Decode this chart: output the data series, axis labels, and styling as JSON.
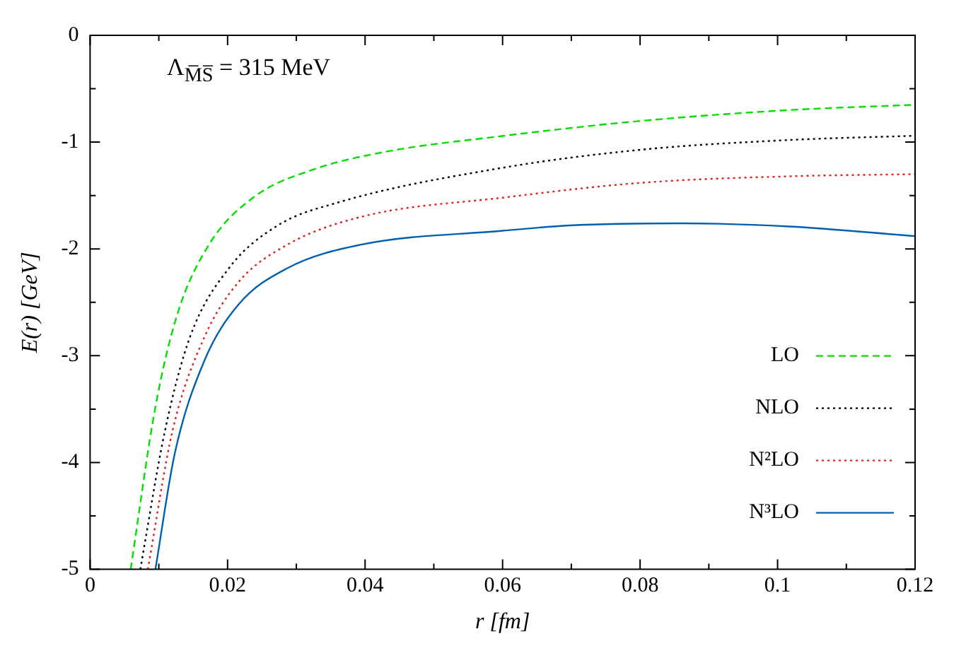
{
  "chart_data": {
    "type": "line",
    "xlabel": "r [fm]",
    "ylabel": "E(r) [GeV]",
    "annotations": [
      "Λ$_{M̅S̅}$ = 315 MeV"
    ],
    "xlim": [
      0,
      0.12
    ],
    "ylim": [
      -5,
      0
    ],
    "xticks": [
      0,
      {
        "value": 0.01,
        "label": null
      },
      0.02,
      {
        "value": 0.03,
        "label": null
      },
      0.04,
      {
        "value": 0.05,
        "label": null
      },
      0.06,
      {
        "value": 0.07,
        "label": null
      },
      0.08,
      {
        "value": 0.09,
        "label": null
      },
      0.1,
      {
        "value": 0.11,
        "label": null
      },
      0.12
    ],
    "yticks": [
      -5,
      {
        "value": -4.5,
        "label": null
      },
      -4,
      {
        "value": -3.5,
        "label": null
      },
      -3,
      {
        "value": -2.5,
        "label": null
      },
      -2,
      {
        "value": -1.5,
        "label": null
      },
      -1,
      {
        "value": -0.5,
        "label": null
      },
      0
    ],
    "grid": false,
    "legend": "bottom right",
    "marker": "none",
    "series": [
      {
        "name": "LO",
        "color": "#00e000",
        "line_style": "dashed",
        "x": [
          0.0059,
          0.0095,
          0.0127,
          0.0173,
          0.0237,
          0.0323,
          0.043,
          0.059,
          0.0803,
          0.1017,
          0.12
        ],
        "values": [
          -5,
          -3.48,
          -2.61,
          -1.96,
          -1.52,
          -1.26,
          -1.09,
          -0.95,
          -0.8,
          -0.7,
          -0.65
        ]
      },
      {
        "name": "NLO",
        "color": "#000000",
        "line_style": "dotted",
        "x": [
          0.0073,
          0.0109,
          0.0145,
          0.0202,
          0.0273,
          0.0358,
          0.06,
          0.0803,
          0.1017,
          0.12
        ],
        "values": [
          -5,
          -3.7,
          -2.83,
          -2.18,
          -1.78,
          -1.57,
          -1.24,
          -1.07,
          -0.98,
          -0.94
        ]
      },
      {
        "name": "N²LO",
        "color": "#e02020",
        "line_style": "dotted",
        "x": [
          0.0084,
          0.012,
          0.0166,
          0.0216,
          0.0287,
          0.0394,
          0.06,
          0.0803,
          0.1017,
          0.12
        ],
        "values": [
          -5,
          -3.7,
          -2.83,
          -2.31,
          -1.96,
          -1.7,
          -1.52,
          -1.38,
          -1.32,
          -1.3
        ]
      },
      {
        "name": "N³LO",
        "color": "#0060b0",
        "line_style": "solid",
        "x": [
          0.0095,
          0.0123,
          0.0166,
          0.0216,
          0.0287,
          0.0394,
          0.06,
          0.0697,
          0.086,
          0.1017,
          0.12
        ],
        "values": [
          -5,
          -3.92,
          -3.05,
          -2.52,
          -2.18,
          -1.96,
          -1.83,
          -1.78,
          -1.76,
          -1.79,
          -1.88
        ]
      }
    ]
  }
}
